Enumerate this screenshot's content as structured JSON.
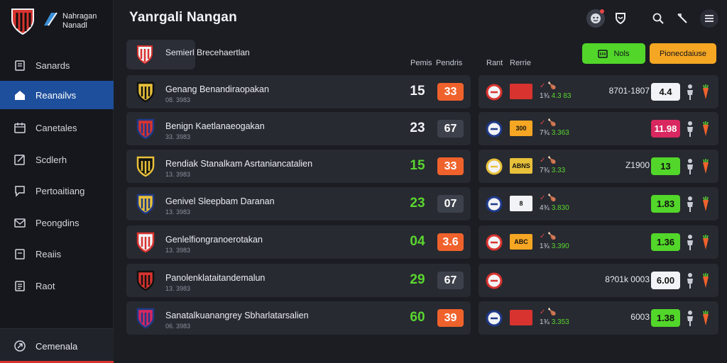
{
  "app": {
    "brand_line1": "Nahragan",
    "brand_line2": "Nanadl",
    "title": "Yanrgali Nangan"
  },
  "colors": {
    "accent_blue": "#1e4f9c",
    "green": "#52d62a",
    "orange": "#f5a623",
    "red": "#e04848"
  },
  "sidebar": {
    "items": [
      {
        "label": "Sanards",
        "icon": "clipboard-icon"
      },
      {
        "label": "Reanailvs",
        "icon": "home-icon",
        "active": true
      },
      {
        "label": "Canetales",
        "icon": "calendar-icon"
      },
      {
        "label": "Scdlerh",
        "icon": "edit-icon"
      },
      {
        "label": "Pertoaitiang",
        "icon": "chat-icon"
      },
      {
        "label": "Peongdins",
        "icon": "mail-icon"
      },
      {
        "label": "Reaiis",
        "icon": "document-icon"
      },
      {
        "label": "Raot",
        "icon": "list-icon"
      }
    ],
    "bottom_label": "Cemenala"
  },
  "header_icons": [
    "user-icon",
    "shield-icon",
    "search-icon",
    "tools-icon",
    "menu-icon"
  ],
  "section": {
    "title": "Semierl Brecehaertlan",
    "col1": "Pemis",
    "col2": "Pendris",
    "col3": "Rant",
    "col4": "Rerrie",
    "btn_green": "Nols",
    "btn_orange": "Pionecdaiuse"
  },
  "rows": [
    {
      "name": "Genang Benandiraopakan",
      "sub": "08. 3983",
      "score": "15",
      "score_color": "#f2f3f7",
      "badge": "33",
      "badge_type": "orange",
      "crest": [
        "#111111",
        "#e8c13a"
      ],
      "flag_text": "",
      "flag_color": "#d8332f",
      "stat1": "✓ 🍗",
      "stat2a": "1¾",
      "stat2b": "4.3 83",
      "odds": "8701-1807",
      "pill": "4.4",
      "pill_type": "white"
    },
    {
      "name": "Benign Kaetlanaeogakan",
      "sub": "33. 3983",
      "score": "23",
      "score_color": "#f2f3f7",
      "badge": "67",
      "badge_type": "grey",
      "crest": [
        "#1f3a8a",
        "#d8332f"
      ],
      "flag_text": "300",
      "flag_color": "#f5a623",
      "stat1": "✓ 🍗",
      "stat2a": "7¾",
      "stat2b": "3.363",
      "odds": "",
      "pill": "11.98",
      "pill_type": "pink"
    },
    {
      "name": "Rendiak Stanalkam Asrtaniancatalien",
      "sub": "13. 3983",
      "score": "15",
      "score_color": "#5ad62f",
      "badge": "33",
      "badge_type": "orange",
      "crest": [
        "#e8c13a",
        "#111111"
      ],
      "flag_text": "ABNS",
      "flag_color": "#e8c13a",
      "stat1": "✓ 🍗",
      "stat2a": "7¾",
      "stat2b": "3.33",
      "odds": "Z1900",
      "pill": "13",
      "pill_type": "green"
    },
    {
      "name": "Genivel Sleepbam Daranan",
      "sub": "13. 3983",
      "score": "23",
      "score_color": "#5ad62f",
      "badge": "07",
      "badge_type": "grey",
      "crest": [
        "#1f3a8a",
        "#e8c13a"
      ],
      "flag_text": "8",
      "flag_color": "#f2f3f6",
      "stat1": "✓ 🍗",
      "stat2a": "4¾",
      "stat2b": "3.830",
      "odds": "",
      "pill": "1.83",
      "pill_type": "green"
    },
    {
      "name": "Genlelfiongranoerotakan",
      "sub": "13. 3983",
      "score": "04",
      "score_color": "#5ad62f",
      "badge": "3.6",
      "badge_type": "orange",
      "crest": [
        "#d8332f",
        "#f2f3f6"
      ],
      "flag_text": "ABC",
      "flag_color": "#f5a623",
      "stat1": "✓ 🍗",
      "stat2a": "1¾",
      "stat2b": "3.390",
      "odds": "",
      "pill": "1.36",
      "pill_type": "green"
    },
    {
      "name": "Panolenklataitandemalun",
      "sub": "13. 3983",
      "score": "29",
      "score_color": "#5ad62f",
      "badge": "67",
      "badge_type": "grey",
      "crest": [
        "#111111",
        "#d8332f"
      ],
      "flag_text": "",
      "flag_color": "",
      "stat1": "",
      "stat2a": "",
      "stat2b": "",
      "odds": "8?01k 0003",
      "pill": "6.00",
      "pill_type": "white"
    },
    {
      "name": "Sanatalkuanangrey Sbharlatarsalien",
      "sub": "06. 3983",
      "score": "60",
      "score_color": "#5ad62f",
      "badge": "39",
      "badge_type": "orange",
      "crest": [
        "#1f3a8a",
        "#d8285f"
      ],
      "flag_text": "",
      "flag_color": "#d8332f",
      "stat1": "✓ 🍗",
      "stat2a": "1¾",
      "stat2b": "3.353",
      "odds": "6003",
      "pill": "1.38",
      "pill_type": "green"
    }
  ]
}
